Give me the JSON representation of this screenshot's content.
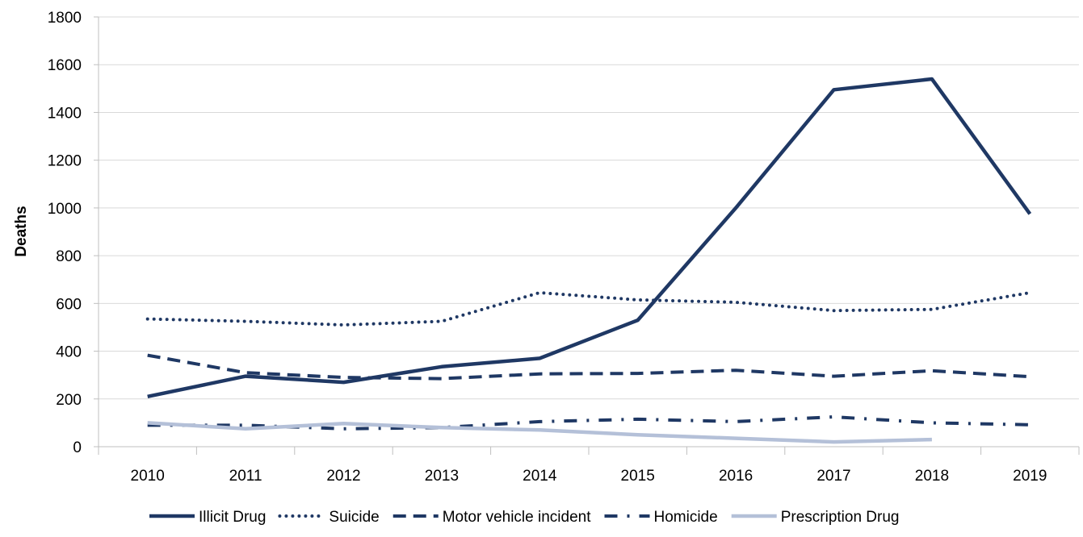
{
  "chart_data": {
    "type": "line",
    "title": "",
    "xlabel": "",
    "ylabel": "Deaths",
    "ylim": [
      0,
      1800
    ],
    "yticks": [
      "0",
      "200",
      "400",
      "600",
      "800",
      "1000",
      "1200",
      "1400",
      "1600",
      "1800"
    ],
    "categories": [
      "2010",
      "2011",
      "2012",
      "2013",
      "2014",
      "2015",
      "2016",
      "2017",
      "2018",
      "2019"
    ],
    "grid": true,
    "legend_position": "bottom",
    "series": [
      {
        "name": "Illicit Drug",
        "style": "solid",
        "color": "#1f3864",
        "values": [
          210,
          295,
          270,
          335,
          370,
          530,
          1000,
          1495,
          1540,
          975
        ]
      },
      {
        "name": "Suicide",
        "style": "dotted",
        "color": "#1f3864",
        "values": [
          535,
          525,
          510,
          525,
          645,
          615,
          605,
          570,
          575,
          645
        ]
      },
      {
        "name": "Motor vehicle incident",
        "style": "dashed",
        "color": "#1f3864",
        "values": [
          383,
          310,
          290,
          285,
          305,
          307,
          320,
          295,
          318,
          293
        ]
      },
      {
        "name": "Homicide",
        "style": "dashdot",
        "color": "#1f3864",
        "values": [
          90,
          90,
          75,
          80,
          105,
          115,
          105,
          125,
          100,
          92
        ]
      },
      {
        "name": "Prescription Drug",
        "style": "solid-light",
        "color": "#b4c0d8",
        "values": [
          100,
          75,
          97,
          80,
          70,
          50,
          35,
          20,
          30,
          null
        ]
      }
    ]
  }
}
